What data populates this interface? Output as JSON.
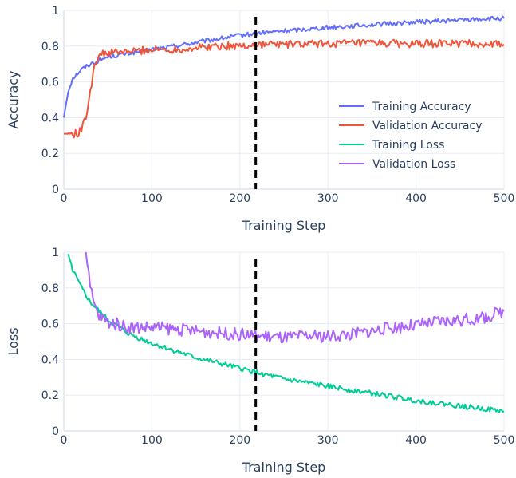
{
  "chart_data": [
    {
      "type": "line",
      "title": "",
      "xlabel": "Training Step",
      "ylabel": "Accuracy",
      "xlim": [
        0,
        500
      ],
      "ylim": [
        0,
        1
      ],
      "x_ticks": [
        "0",
        "100",
        "200",
        "300",
        "400",
        "500"
      ],
      "y_ticks": [
        "0",
        "0.2",
        "0.4",
        "0.6",
        "0.8",
        "1"
      ],
      "grid": true,
      "legend_position": "right-middle",
      "vline": {
        "x": 218,
        "style": "dashed",
        "color": "#000000"
      },
      "series": [
        {
          "name": "Training Accuracy",
          "color": "#636efa",
          "x": [
            0,
            5,
            10,
            20,
            30,
            40,
            50,
            75,
            100,
            125,
            150,
            175,
            200,
            225,
            250,
            275,
            300,
            325,
            350,
            375,
            400,
            425,
            450,
            475,
            500
          ],
          "values": [
            0.4,
            0.55,
            0.62,
            0.67,
            0.7,
            0.72,
            0.74,
            0.76,
            0.78,
            0.8,
            0.82,
            0.84,
            0.86,
            0.875,
            0.885,
            0.895,
            0.905,
            0.912,
            0.92,
            0.928,
            0.935,
            0.94,
            0.946,
            0.952,
            0.955
          ]
        },
        {
          "name": "Validation Accuracy",
          "color": "#ef553b",
          "x": [
            0,
            10,
            15,
            20,
            25,
            30,
            35,
            40,
            50,
            75,
            100,
            125,
            150,
            175,
            200,
            225,
            250,
            275,
            300,
            325,
            350,
            375,
            400,
            425,
            450,
            475,
            500
          ],
          "values": [
            0.31,
            0.31,
            0.31,
            0.33,
            0.4,
            0.55,
            0.7,
            0.75,
            0.76,
            0.77,
            0.78,
            0.78,
            0.79,
            0.8,
            0.8,
            0.81,
            0.81,
            0.81,
            0.815,
            0.815,
            0.815,
            0.815,
            0.81,
            0.815,
            0.815,
            0.81,
            0.81
          ]
        },
        {
          "name": "Training Loss",
          "color": "#00cc96",
          "x": [],
          "values": []
        },
        {
          "name": "Validation Loss",
          "color": "#ab63fa",
          "x": [],
          "values": []
        }
      ]
    },
    {
      "type": "line",
      "title": "",
      "xlabel": "Training Step",
      "ylabel": "Loss",
      "xlim": [
        0,
        500
      ],
      "ylim": [
        0,
        1
      ],
      "x_ticks": [
        "0",
        "100",
        "200",
        "300",
        "400",
        "500"
      ],
      "y_ticks": [
        "0",
        "0.2",
        "0.4",
        "0.6",
        "0.8",
        "1"
      ],
      "grid": true,
      "vline": {
        "x": 218,
        "style": "dashed",
        "color": "#000000"
      },
      "series": [
        {
          "name": "Training Loss",
          "color": "#00cc96",
          "x": [
            5,
            10,
            20,
            30,
            40,
            50,
            75,
            100,
            125,
            150,
            175,
            200,
            225,
            250,
            275,
            300,
            325,
            350,
            375,
            400,
            425,
            450,
            475,
            500
          ],
          "values": [
            0.99,
            0.9,
            0.8,
            0.72,
            0.67,
            0.62,
            0.54,
            0.49,
            0.45,
            0.41,
            0.38,
            0.35,
            0.32,
            0.29,
            0.27,
            0.25,
            0.23,
            0.21,
            0.19,
            0.17,
            0.155,
            0.14,
            0.125,
            0.11
          ]
        },
        {
          "name": "Validation Loss",
          "color": "#ab63fa",
          "x": [
            25,
            30,
            35,
            40,
            50,
            75,
            100,
            125,
            150,
            175,
            200,
            225,
            250,
            275,
            300,
            325,
            350,
            375,
            400,
            425,
            450,
            475,
            500
          ],
          "values": [
            1.0,
            0.8,
            0.7,
            0.64,
            0.61,
            0.58,
            0.58,
            0.57,
            0.56,
            0.55,
            0.54,
            0.53,
            0.52,
            0.53,
            0.53,
            0.54,
            0.56,
            0.58,
            0.59,
            0.61,
            0.62,
            0.63,
            0.67
          ]
        }
      ]
    }
  ]
}
